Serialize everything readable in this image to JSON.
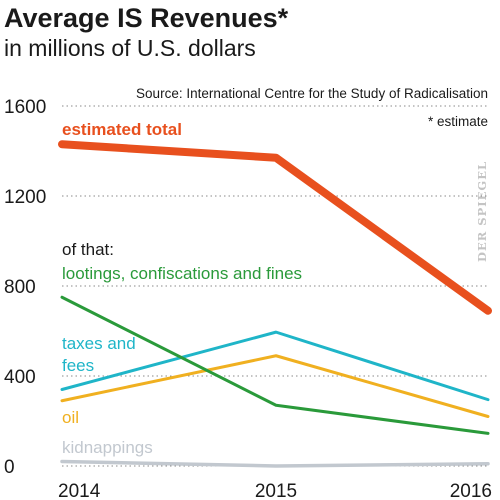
{
  "chart_data": {
    "type": "line",
    "title": "Average IS Revenues*",
    "subtitle": "in millions of U.S. dollars",
    "source": "Source:  International Centre for the Study of Radicalisation",
    "footnote": "* estimate",
    "watermark": "DER SPIEGEL",
    "group_label": "of that:",
    "x": [
      "2014",
      "2015",
      "2016"
    ],
    "ylim": [
      0,
      1600
    ],
    "yticks": [
      {
        "value": 0,
        "label": "0"
      },
      {
        "value": 400,
        "label": "400"
      },
      {
        "value": 800,
        "label": "800"
      },
      {
        "value": 1200,
        "label": "1200"
      },
      {
        "value": 1600,
        "label": "1600"
      }
    ],
    "grid": true,
    "series": [
      {
        "name": "estimated total",
        "color": "#e8501e",
        "values": [
          1430,
          1370,
          690
        ]
      },
      {
        "name": "lootings, confiscations and fines",
        "color": "#2a9a3a",
        "values": [
          750,
          270,
          145
        ]
      },
      {
        "name": "taxes and fees",
        "color": "#1fb5c8",
        "values": [
          340,
          595,
          295
        ]
      },
      {
        "name": "oil",
        "color": "#f0b020",
        "values": [
          290,
          490,
          220
        ]
      },
      {
        "name": "kidnappings",
        "color": "#c2c8cf",
        "values": [
          20,
          0,
          10
        ]
      }
    ]
  }
}
